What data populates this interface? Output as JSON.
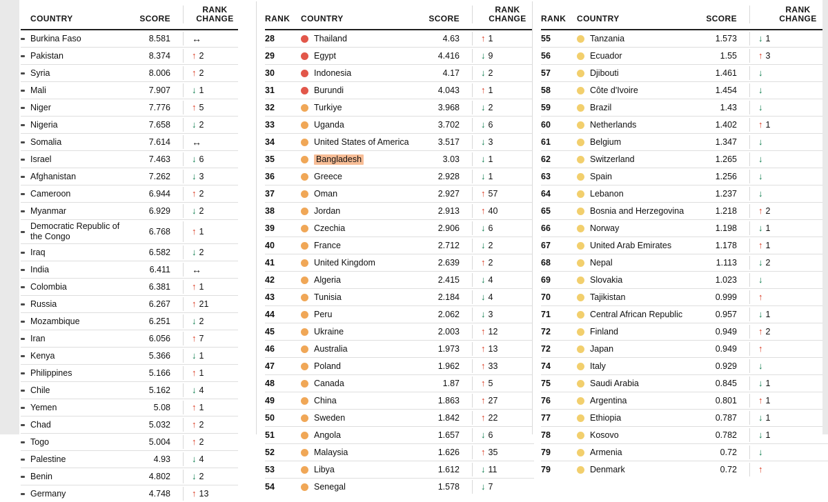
{
  "chart_data": {
    "type": "table",
    "headers": {
      "rank": "RANK",
      "country": "COUNTRY",
      "score": "SCORE",
      "rank_change_line1": "RANK",
      "rank_change_line2": "CHANGE"
    },
    "colors": {
      "arrow_up": "#d93a22",
      "arrow_down": "#0a7a4b",
      "arrow_same": "#161616",
      "dot_red": "#e2574a",
      "dot_orange": "#f0a757",
      "dot_yellow": "#f2cf6d",
      "highlight": "#f29150"
    },
    "panels": [
      {
        "show_rank": false,
        "rows": [
          {
            "country": "Burkina Faso",
            "score": "8.581",
            "dir": "same",
            "delta": ""
          },
          {
            "country": "Pakistan",
            "score": "8.374",
            "dir": "up",
            "delta": "2"
          },
          {
            "country": "Syria",
            "score": "8.006",
            "dir": "up",
            "delta": "2"
          },
          {
            "country": "Mali",
            "score": "7.907",
            "dir": "down",
            "delta": "1"
          },
          {
            "country": "Niger",
            "score": "7.776",
            "dir": "up",
            "delta": "5"
          },
          {
            "country": "Nigeria",
            "score": "7.658",
            "dir": "down",
            "delta": "2"
          },
          {
            "country": "Somalia",
            "score": "7.614",
            "dir": "same",
            "delta": ""
          },
          {
            "country": "Israel",
            "score": "7.463",
            "dir": "down",
            "delta": "6"
          },
          {
            "country": "Afghanistan",
            "score": "7.262",
            "dir": "down",
            "delta": "3"
          },
          {
            "country": "Cameroon",
            "score": "6.944",
            "dir": "up",
            "delta": "2"
          },
          {
            "country": "Myanmar",
            "score": "6.929",
            "dir": "down",
            "delta": "2"
          },
          {
            "country": "Democratic Republic of the Congo",
            "score": "6.768",
            "dir": "up",
            "delta": "1"
          },
          {
            "country": "Iraq",
            "score": "6.582",
            "dir": "down",
            "delta": "2"
          },
          {
            "country": "India",
            "score": "6.411",
            "dir": "same",
            "delta": ""
          },
          {
            "country": "Colombia",
            "score": "6.381",
            "dir": "up",
            "delta": "1"
          },
          {
            "country": "Russia",
            "score": "6.267",
            "dir": "up",
            "delta": "21"
          },
          {
            "country": "Mozambique",
            "score": "6.251",
            "dir": "down",
            "delta": "2"
          },
          {
            "country": "Iran",
            "score": "6.056",
            "dir": "up",
            "delta": "7"
          },
          {
            "country": "Kenya",
            "score": "5.366",
            "dir": "down",
            "delta": "1"
          },
          {
            "country": "Philippines",
            "score": "5.166",
            "dir": "up",
            "delta": "1"
          },
          {
            "country": "Chile",
            "score": "5.162",
            "dir": "down",
            "delta": "4"
          },
          {
            "country": "Yemen",
            "score": "5.08",
            "dir": "up",
            "delta": "1"
          },
          {
            "country": "Chad",
            "score": "5.032",
            "dir": "up",
            "delta": "2"
          },
          {
            "country": "Togo",
            "score": "5.004",
            "dir": "up",
            "delta": "2"
          },
          {
            "country": "Palestine",
            "score": "4.93",
            "dir": "down",
            "delta": "4"
          },
          {
            "country": "Benin",
            "score": "4.802",
            "dir": "down",
            "delta": "2"
          },
          {
            "country": "Germany",
            "score": "4.748",
            "dir": "up",
            "delta": "13"
          }
        ]
      },
      {
        "show_rank": true,
        "rows": [
          {
            "rank": "28",
            "country": "Thailand",
            "score": "4.63",
            "dir": "up",
            "delta": "1",
            "dot": "red"
          },
          {
            "rank": "29",
            "country": "Egypt",
            "score": "4.416",
            "dir": "down",
            "delta": "9",
            "dot": "red"
          },
          {
            "rank": "30",
            "country": "Indonesia",
            "score": "4.17",
            "dir": "down",
            "delta": "2",
            "dot": "red"
          },
          {
            "rank": "31",
            "country": "Burundi",
            "score": "4.043",
            "dir": "up",
            "delta": "1",
            "dot": "red"
          },
          {
            "rank": "32",
            "country": "Turkiye",
            "score": "3.968",
            "dir": "down",
            "delta": "2",
            "dot": "orange"
          },
          {
            "rank": "33",
            "country": "Uganda",
            "score": "3.702",
            "dir": "down",
            "delta": "6",
            "dot": "orange"
          },
          {
            "rank": "34",
            "country": "United States of America",
            "score": "3.517",
            "dir": "down",
            "delta": "3",
            "dot": "orange"
          },
          {
            "rank": "35",
            "country": "Bangladesh",
            "score": "3.03",
            "dir": "down",
            "delta": "1",
            "dot": "orange",
            "highlight": true
          },
          {
            "rank": "36",
            "country": "Greece",
            "score": "2.928",
            "dir": "down",
            "delta": "1",
            "dot": "orange"
          },
          {
            "rank": "37",
            "country": "Oman",
            "score": "2.927",
            "dir": "up",
            "delta": "57",
            "dot": "orange"
          },
          {
            "rank": "38",
            "country": "Jordan",
            "score": "2.913",
            "dir": "up",
            "delta": "40",
            "dot": "orange"
          },
          {
            "rank": "39",
            "country": "Czechia",
            "score": "2.906",
            "dir": "down",
            "delta": "6",
            "dot": "orange"
          },
          {
            "rank": "40",
            "country": "France",
            "score": "2.712",
            "dir": "down",
            "delta": "2",
            "dot": "orange"
          },
          {
            "rank": "41",
            "country": "United Kingdom",
            "score": "2.639",
            "dir": "up",
            "delta": "2",
            "dot": "orange"
          },
          {
            "rank": "42",
            "country": "Algeria",
            "score": "2.415",
            "dir": "down",
            "delta": "4",
            "dot": "orange"
          },
          {
            "rank": "43",
            "country": "Tunisia",
            "score": "2.184",
            "dir": "down",
            "delta": "4",
            "dot": "orange"
          },
          {
            "rank": "44",
            "country": "Peru",
            "score": "2.062",
            "dir": "down",
            "delta": "3",
            "dot": "orange"
          },
          {
            "rank": "45",
            "country": "Ukraine",
            "score": "2.003",
            "dir": "up",
            "delta": "12",
            "dot": "orange"
          },
          {
            "rank": "46",
            "country": "Australia",
            "score": "1.973",
            "dir": "up",
            "delta": "13",
            "dot": "orange"
          },
          {
            "rank": "47",
            "country": "Poland",
            "score": "1.962",
            "dir": "up",
            "delta": "33",
            "dot": "orange"
          },
          {
            "rank": "48",
            "country": "Canada",
            "score": "1.87",
            "dir": "up",
            "delta": "5",
            "dot": "orange"
          },
          {
            "rank": "49",
            "country": "China",
            "score": "1.863",
            "dir": "up",
            "delta": "27",
            "dot": "orange"
          },
          {
            "rank": "50",
            "country": "Sweden",
            "score": "1.842",
            "dir": "up",
            "delta": "22",
            "dot": "orange"
          },
          {
            "rank": "51",
            "country": "Angola",
            "score": "1.657",
            "dir": "down",
            "delta": "6",
            "dot": "orange"
          },
          {
            "rank": "52",
            "country": "Malaysia",
            "score": "1.626",
            "dir": "up",
            "delta": "35",
            "dot": "orange"
          },
          {
            "rank": "53",
            "country": "Libya",
            "score": "1.612",
            "dir": "down",
            "delta": "11",
            "dot": "orange"
          },
          {
            "rank": "54",
            "country": "Senegal",
            "score": "1.578",
            "dir": "down",
            "delta": "7",
            "dot": "orange"
          }
        ]
      },
      {
        "show_rank": true,
        "rows": [
          {
            "rank": "55",
            "country": "Tanzania",
            "score": "1.573",
            "dir": "down",
            "delta": "1",
            "dot": "yellow"
          },
          {
            "rank": "56",
            "country": "Ecuador",
            "score": "1.55",
            "dir": "up",
            "delta": "3",
            "dot": "yellow"
          },
          {
            "rank": "57",
            "country": "Djibouti",
            "score": "1.461",
            "dir": "down",
            "delta": "",
            "dot": "yellow"
          },
          {
            "rank": "58",
            "country": "Côte d'Ivoire",
            "score": "1.454",
            "dir": "down",
            "delta": "",
            "dot": "yellow"
          },
          {
            "rank": "59",
            "country": "Brazil",
            "score": "1.43",
            "dir": "down",
            "delta": "",
            "dot": "yellow"
          },
          {
            "rank": "60",
            "country": "Netherlands",
            "score": "1.402",
            "dir": "up",
            "delta": "1",
            "dot": "yellow"
          },
          {
            "rank": "61",
            "country": "Belgium",
            "score": "1.347",
            "dir": "down",
            "delta": "",
            "dot": "yellow"
          },
          {
            "rank": "62",
            "country": "Switzerland",
            "score": "1.265",
            "dir": "down",
            "delta": "",
            "dot": "yellow"
          },
          {
            "rank": "63",
            "country": "Spain",
            "score": "1.256",
            "dir": "down",
            "delta": "",
            "dot": "yellow"
          },
          {
            "rank": "64",
            "country": "Lebanon",
            "score": "1.237",
            "dir": "down",
            "delta": "",
            "dot": "yellow"
          },
          {
            "rank": "65",
            "country": "Bosnia and Herzegovina",
            "score": "1.218",
            "dir": "up",
            "delta": "2",
            "dot": "yellow"
          },
          {
            "rank": "66",
            "country": "Norway",
            "score": "1.198",
            "dir": "down",
            "delta": "1",
            "dot": "yellow"
          },
          {
            "rank": "67",
            "country": "United Arab Emirates",
            "score": "1.178",
            "dir": "up",
            "delta": "1",
            "dot": "yellow"
          },
          {
            "rank": "68",
            "country": "Nepal",
            "score": "1.113",
            "dir": "down",
            "delta": "2",
            "dot": "yellow"
          },
          {
            "rank": "69",
            "country": "Slovakia",
            "score": "1.023",
            "dir": "down",
            "delta": "",
            "dot": "yellow"
          },
          {
            "rank": "70",
            "country": "Tajikistan",
            "score": "0.999",
            "dir": "up",
            "delta": "",
            "dot": "yellow"
          },
          {
            "rank": "71",
            "country": "Central African Republic",
            "score": "0.957",
            "dir": "down",
            "delta": "1",
            "dot": "yellow"
          },
          {
            "rank": "72",
            "country": "Finland",
            "score": "0.949",
            "dir": "up",
            "delta": "2",
            "dot": "yellow"
          },
          {
            "rank": "72",
            "country": "Japan",
            "score": "0.949",
            "dir": "up",
            "delta": "",
            "dot": "yellow"
          },
          {
            "rank": "74",
            "country": "Italy",
            "score": "0.929",
            "dir": "down",
            "delta": "",
            "dot": "yellow"
          },
          {
            "rank": "75",
            "country": "Saudi Arabia",
            "score": "0.845",
            "dir": "down",
            "delta": "1",
            "dot": "yellow"
          },
          {
            "rank": "76",
            "country": "Argentina",
            "score": "0.801",
            "dir": "up",
            "delta": "1",
            "dot": "yellow"
          },
          {
            "rank": "77",
            "country": "Ethiopia",
            "score": "0.787",
            "dir": "down",
            "delta": "1",
            "dot": "yellow"
          },
          {
            "rank": "78",
            "country": "Kosovo",
            "score": "0.782",
            "dir": "down",
            "delta": "1",
            "dot": "yellow"
          },
          {
            "rank": "79",
            "country": "Armenia",
            "score": "0.72",
            "dir": "down",
            "delta": "",
            "dot": "yellow"
          },
          {
            "rank": "79",
            "country": "Denmark",
            "score": "0.72",
            "dir": "up",
            "delta": "",
            "dot": "yellow"
          }
        ]
      }
    ]
  }
}
